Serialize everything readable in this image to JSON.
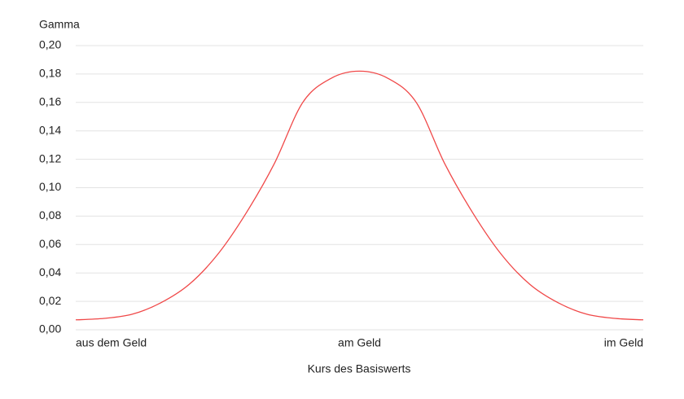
{
  "chart_data": {
    "type": "line",
    "y_label": "Gamma",
    "x_label": "Kurs des Basiswerts",
    "categories": [
      "aus dem Geld",
      null,
      null,
      null,
      null,
      null,
      null,
      null,
      null,
      null,
      "am Geld",
      null,
      null,
      null,
      null,
      null,
      null,
      null,
      null,
      null,
      "im Geld"
    ],
    "series": [
      {
        "name": "Gamma",
        "color": "#f04848",
        "values": [
          0.007,
          0.008,
          0.011,
          0.019,
          0.032,
          0.053,
          0.082,
          0.117,
          0.16,
          0.177,
          0.182,
          0.177,
          0.16,
          0.117,
          0.082,
          0.053,
          0.032,
          0.019,
          0.011,
          0.008,
          0.007
        ]
      }
    ],
    "ylim": [
      0,
      0.2
    ],
    "yticks": [
      {
        "value": 0,
        "label": "0,00"
      },
      {
        "value": 0.02,
        "label": "0,02"
      },
      {
        "value": 0.04,
        "label": "0,04"
      },
      {
        "value": 0.06,
        "label": "0,06"
      },
      {
        "value": 0.08,
        "label": "0,08"
      },
      {
        "value": 0.1,
        "label": "0,10"
      },
      {
        "value": 0.12,
        "label": "0,12"
      },
      {
        "value": 0.14,
        "label": "0,14"
      },
      {
        "value": 0.16,
        "label": "0,16"
      },
      {
        "value": 0.18,
        "label": "0,18"
      },
      {
        "value": 0.2,
        "label": "0,20"
      }
    ],
    "grid": true
  }
}
